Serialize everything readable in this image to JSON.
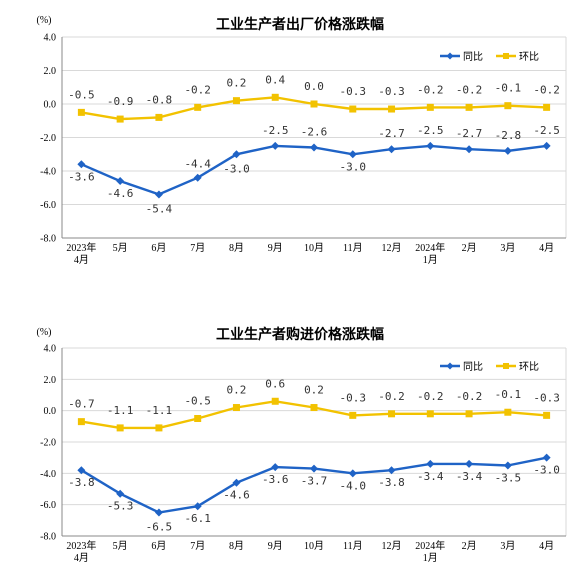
{
  "colors": {
    "yoy": "#1f63c6",
    "mom": "#f2c200",
    "grid": "#d9d9d9",
    "axis": "#888888"
  },
  "chart_data": [
    {
      "type": "line",
      "title": "工业生产者出厂价格涨跌幅",
      "unit": "(%)",
      "categories": [
        "2023年\n4月",
        "5月",
        "6月",
        "7月",
        "8月",
        "9月",
        "10月",
        "11月",
        "12月",
        "2024年\n1月",
        "2月",
        "3月",
        "4月"
      ],
      "ylim": [
        -8.0,
        4.0
      ],
      "yticks": [
        "4.0",
        "2.0",
        "0.0",
        "-2.0",
        "-4.0",
        "-6.0",
        "-8.0"
      ],
      "grid": true,
      "legend_position": "top-right",
      "series": [
        {
          "name": "同比",
          "values": [
            -3.6,
            -4.6,
            -5.4,
            -4.4,
            -3.0,
            -2.5,
            -2.6,
            -3.0,
            -2.7,
            -2.5,
            -2.7,
            -2.8,
            -2.5
          ],
          "labels": [
            "-3.6",
            "-4.6",
            "-5.4",
            "-4.4",
            "-3.0",
            "-2.5",
            "-2.6",
            "-3.0",
            "-2.7",
            "-2.5",
            "-2.7",
            "-2.8",
            "-2.5"
          ]
        },
        {
          "name": "环比",
          "values": [
            -0.5,
            -0.9,
            -0.8,
            -0.2,
            0.2,
            0.4,
            0.0,
            -0.3,
            -0.3,
            -0.2,
            -0.2,
            -0.1,
            -0.2
          ],
          "labels": [
            "-0.5",
            "-0.9",
            "-0.8",
            "-0.2",
            "0.2",
            "0.4",
            "0.0",
            "-0.3",
            "-0.3",
            "-0.2",
            "-0.2",
            "-0.1",
            "-0.2"
          ]
        }
      ]
    },
    {
      "type": "line",
      "title": "工业生产者购进价格涨跌幅",
      "unit": "(%)",
      "categories": [
        "2023年\n4月",
        "5月",
        "6月",
        "7月",
        "8月",
        "9月",
        "10月",
        "11月",
        "12月",
        "2024年\n1月",
        "2月",
        "3月",
        "4月"
      ],
      "ylim": [
        -8.0,
        4.0
      ],
      "yticks": [
        "4.0",
        "2.0",
        "0.0",
        "-2.0",
        "-4.0",
        "-6.0",
        "-8.0"
      ],
      "grid": true,
      "legend_position": "top-right",
      "series": [
        {
          "name": "同比",
          "values": [
            -3.8,
            -5.3,
            -6.5,
            -6.1,
            -4.6,
            -3.6,
            -3.7,
            -4.0,
            -3.8,
            -3.4,
            -3.4,
            -3.5,
            -3.0
          ],
          "labels": [
            "-3.8",
            "-5.3",
            "-6.5",
            "-6.1",
            "-4.6",
            "-3.6",
            "-3.7",
            "-4.0",
            "-3.8",
            "-3.4",
            "-3.4",
            "-3.5",
            "-3.0"
          ]
        },
        {
          "name": "环比",
          "values": [
            -0.7,
            -1.1,
            -1.1,
            -0.5,
            0.2,
            0.6,
            0.2,
            -0.3,
            -0.2,
            -0.2,
            -0.2,
            -0.1,
            -0.3
          ],
          "labels": [
            "-0.7",
            "-1.1",
            "-1.1",
            "-0.5",
            "0.2",
            "0.6",
            "0.2",
            "-0.3",
            "-0.2",
            "-0.2",
            "-0.2",
            "-0.1",
            "-0.3"
          ]
        }
      ]
    }
  ]
}
